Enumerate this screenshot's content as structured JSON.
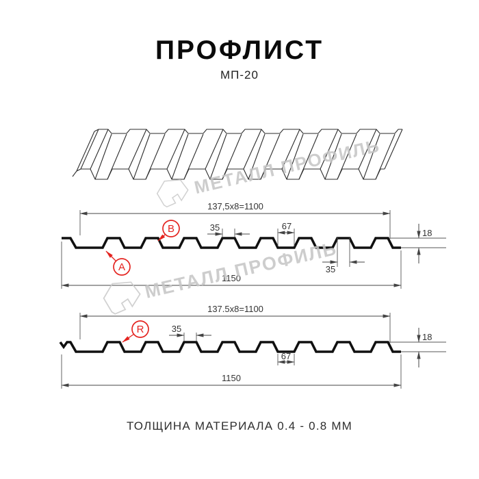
{
  "header": {
    "title": "ПРОФЛИСТ",
    "subtitle": "МП-20"
  },
  "watermark": {
    "text": "МЕТАЛЛ ПРОФИЛЬ"
  },
  "section1": {
    "top_dim": "137,5x8=1100",
    "rib_top_dim": "35",
    "valley_dim": "67",
    "height_dim": "18",
    "rib_top_dim2": "35",
    "total_dim": "1150",
    "label_a": "A",
    "label_b": "B"
  },
  "section2": {
    "top_dim": "137.5x8=1100",
    "rib_top_dim": "35",
    "valley_dim": "67",
    "height_dim": "18",
    "total_dim": "1150",
    "label_r": "R"
  },
  "footer": {
    "text": "ТОЛЩИНА МАТЕРИАЛА 0.4 - 0.8 ММ"
  },
  "colors": {
    "accent_red": "#e42420",
    "line": "#444444",
    "profile": "#101010",
    "watermark": "#c5c5c5"
  }
}
